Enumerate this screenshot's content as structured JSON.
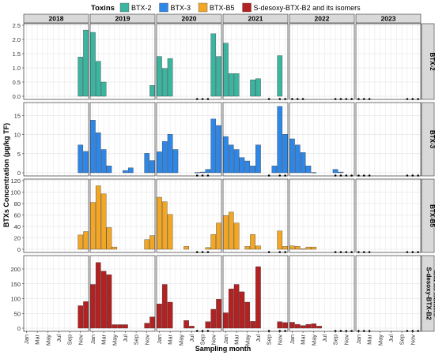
{
  "chart_data": {
    "type": "bar",
    "ylabel": "BTXs Concentration (µg/kg TF)",
    "xlabel": "Sampling month",
    "legend_title": "Toxins",
    "legend_position": "top",
    "grid": true,
    "years": [
      "2018",
      "2019",
      "2020",
      "2021",
      "2022",
      "2023"
    ],
    "month_ticks": [
      "Jan",
      "Mar",
      "May",
      "Jul",
      "Sep",
      "Nov"
    ],
    "series": [
      {
        "name": "BTX-2",
        "strip_label": [
          "BTX-2"
        ],
        "color": "#3bb5a0",
        "ylim": [
          0,
          2.5
        ],
        "yticks": [
          "0.0",
          "0.5",
          "1.0",
          "1.5",
          "2.0",
          "2.5"
        ],
        "values": [
          [
            null,
            null,
            null,
            null,
            null,
            null,
            null,
            null,
            null,
            null,
            1.38,
            2.33
          ],
          [
            2.25,
            1.23,
            0.5,
            null,
            null,
            null,
            null,
            null,
            null,
            null,
            null,
            0.38
          ],
          [
            1.4,
            0.98,
            1.33,
            null,
            null,
            null,
            null,
            null,
            null,
            null,
            2.2,
            1.4
          ],
          [
            1.87,
            0.8,
            0.8,
            null,
            null,
            0.58,
            0.62,
            null,
            null,
            null,
            1.43,
            null
          ],
          [
            null,
            null,
            null,
            null,
            null,
            null,
            null,
            null,
            null,
            null,
            null,
            null
          ],
          [
            null,
            null,
            null,
            null,
            null,
            null,
            null,
            null,
            null,
            null,
            null,
            null
          ]
        ]
      },
      {
        "name": "BTX-3",
        "strip_label": [
          "BTX-3"
        ],
        "color": "#2e86e6",
        "ylim": [
          0,
          18
        ],
        "yticks": [
          "0",
          "5",
          "10",
          "15"
        ],
        "values": [
          [
            null,
            null,
            null,
            null,
            null,
            null,
            null,
            null,
            null,
            null,
            7.3,
            5.6
          ],
          [
            13.8,
            10.5,
            6.1,
            1.8,
            null,
            null,
            0.6,
            1.3,
            null,
            null,
            5.1,
            3.2
          ],
          [
            5.5,
            8.2,
            10.1,
            6.1,
            null,
            null,
            null,
            0.1,
            0.2,
            0.9,
            14.1,
            12.4
          ],
          [
            9.5,
            7.3,
            6.1,
            4.0,
            3.1,
            1.8,
            7.3,
            null,
            null,
            1.8,
            17.4,
            10.1
          ],
          [
            8.9,
            7.3,
            5.3,
            1.8,
            0.1,
            null,
            null,
            null,
            0.9,
            0.2,
            null,
            null
          ],
          [
            null,
            null,
            null,
            null,
            null,
            null,
            null,
            null,
            null,
            null,
            null,
            null
          ]
        ]
      },
      {
        "name": "BTX-B5",
        "strip_label": [
          "BTX-B5"
        ],
        "color": "#f2a626",
        "ylim": [
          0,
          120
        ],
        "yticks": [
          "0",
          "20",
          "40",
          "60",
          "80",
          "100",
          "120"
        ],
        "values": [
          [
            null,
            null,
            null,
            null,
            null,
            null,
            null,
            null,
            null,
            null,
            25,
            31
          ],
          [
            82,
            111,
            97,
            38,
            4,
            null,
            null,
            null,
            null,
            null,
            17,
            24
          ],
          [
            91,
            83,
            61,
            null,
            null,
            5,
            null,
            null,
            null,
            3,
            26,
            46
          ],
          [
            59,
            65,
            46,
            null,
            5,
            26,
            6,
            null,
            null,
            null,
            32,
            5
          ],
          [
            6,
            5,
            1,
            4,
            4,
            null,
            null,
            null,
            null,
            null,
            null,
            null
          ],
          [
            null,
            null,
            null,
            null,
            null,
            null,
            null,
            null,
            null,
            null,
            null,
            null
          ]
        ]
      },
      {
        "name": "S-desoxy-BTX-B2 and its isomers",
        "strip_label": [
          "S-desoxy-BTX-B2",
          "and its isomers"
        ],
        "color": "#b22222",
        "ylim": [
          0,
          240
        ],
        "yticks": [
          "0",
          "50",
          "100",
          "150",
          "200"
        ],
        "values": [
          [
            null,
            null,
            null,
            null,
            null,
            null,
            null,
            null,
            null,
            null,
            76,
            90
          ],
          [
            148,
            222,
            193,
            181,
            12,
            12,
            12,
            null,
            null,
            null,
            17,
            38
          ],
          [
            82,
            148,
            88,
            null,
            null,
            26,
            7,
            null,
            null,
            22,
            64,
            98
          ],
          [
            52,
            133,
            148,
            123,
            88,
            23,
            208,
            null,
            null,
            null,
            22,
            19
          ],
          [
            20,
            13,
            9,
            13,
            15,
            7,
            null,
            null,
            null,
            null,
            null,
            null
          ],
          [
            null,
            null,
            null,
            null,
            null,
            null,
            null,
            null,
            null,
            null,
            null,
            null
          ]
        ]
      }
    ],
    "no_sample_marks": [
      {
        "series": 0,
        "year": 2,
        "months": [
          7,
          8,
          9
        ]
      },
      {
        "series": 0,
        "year": 3,
        "months": [
          8,
          10,
          11
        ]
      },
      {
        "series": 0,
        "year": 4,
        "months": [
          0,
          1,
          2
        ]
      },
      {
        "series": 0,
        "year": 4,
        "months": [
          8,
          9,
          10,
          11
        ]
      },
      {
        "series": 0,
        "year": 5,
        "months": [
          0,
          1,
          2
        ]
      },
      {
        "series": 0,
        "year": 5,
        "months": [
          9,
          10,
          11
        ]
      },
      {
        "series": 1,
        "year": 2,
        "months": [
          7,
          8,
          9
        ]
      },
      {
        "series": 1,
        "year": 3,
        "months": [
          8,
          10,
          11
        ]
      },
      {
        "series": 1,
        "year": 4,
        "months": [
          8,
          9,
          10,
          11
        ]
      },
      {
        "series": 1,
        "year": 5,
        "months": [
          0,
          1,
          2
        ]
      },
      {
        "series": 1,
        "year": 5,
        "months": [
          9,
          10,
          11
        ]
      },
      {
        "series": 2,
        "year": 2,
        "months": [
          7,
          8,
          9
        ]
      },
      {
        "series": 2,
        "year": 3,
        "months": [
          8,
          10,
          11
        ]
      },
      {
        "series": 2,
        "year": 4,
        "months": [
          8,
          9,
          10,
          11
        ]
      },
      {
        "series": 2,
        "year": 5,
        "months": [
          0,
          1,
          2
        ]
      },
      {
        "series": 2,
        "year": 5,
        "months": [
          9,
          10,
          11
        ]
      },
      {
        "series": 3,
        "year": 2,
        "months": [
          7,
          8,
          9
        ]
      },
      {
        "series": 3,
        "year": 3,
        "months": [
          8,
          10,
          11
        ]
      },
      {
        "series": 3,
        "year": 4,
        "months": [
          8,
          9,
          10,
          11
        ]
      },
      {
        "series": 3,
        "year": 5,
        "months": [
          0,
          1,
          2
        ]
      },
      {
        "series": 3,
        "year": 5,
        "months": [
          9,
          10,
          11
        ]
      }
    ]
  }
}
